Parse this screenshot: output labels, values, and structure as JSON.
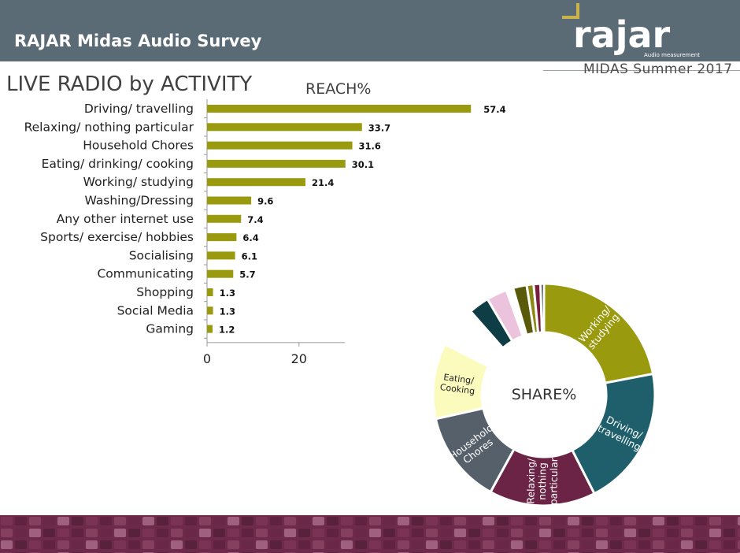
{
  "header": {
    "title": "RAJAR Midas Audio Survey",
    "logo_text": "rajar",
    "logo_subtext": "Audio measurement",
    "subtitle": "MIDAS Summer 2017"
  },
  "page_title": "LIVE RADIO by ACTIVITY",
  "colors": {
    "header_bg": "#5b6b76",
    "bar": "#9a9a0f",
    "footer": "#6e2a4b",
    "logo_accent": "#c9b34a"
  },
  "chart_data": [
    {
      "type": "bar",
      "orientation": "horizontal",
      "title": "REACH%",
      "categories": [
        "Driving/ travelling",
        "Relaxing/ nothing particular",
        "Household Chores",
        "Eating/ drinking/ cooking",
        "Working/ studying",
        "Washing/Dressing",
        "Any other internet use",
        "Sports/ exercise/ hobbies",
        "Socialising",
        "Communicating",
        "Shopping",
        "Social Media",
        "Gaming"
      ],
      "values": [
        57.4,
        33.7,
        31.6,
        30.1,
        21.4,
        9.6,
        7.4,
        6.4,
        6.1,
        5.7,
        1.3,
        1.3,
        1.2
      ],
      "value_labels": [
        "57.4",
        "33.7",
        "31.6",
        "30.1",
        "21.4",
        "9.6",
        "7.4",
        "6.4",
        "6.1",
        "5.7",
        "1.3",
        "1.3",
        "1.2"
      ],
      "xticks": [
        0,
        20
      ],
      "xlim": [
        0,
        30
      ],
      "grid": false
    },
    {
      "type": "pie",
      "variant": "donut",
      "title": "SHARE%",
      "slices": [
        {
          "label": "Working/ studying",
          "value": 22.0,
          "color": "#9a9a0f"
        },
        {
          "label": "Driving/ travelling",
          "value": 20.5,
          "color": "#1f5f6b"
        },
        {
          "label": "Relaxing/ nothing particular",
          "value": 15.5,
          "color": "#6b2446"
        },
        {
          "label": "Household Chores",
          "value": 13.5,
          "color": "#55606b"
        },
        {
          "label": "Eating/ Cooking",
          "value": 11.0,
          "color": "#fbfbbd"
        },
        {
          "label": "",
          "value": 6.0,
          "color": "#ffffff"
        },
        {
          "label": "",
          "value": 3.0,
          "color": "#0e3d45"
        },
        {
          "label": "",
          "value": 3.0,
          "color": "#ecc3dc"
        },
        {
          "label": "",
          "value": 1.0,
          "color": "#ffffff"
        },
        {
          "label": "",
          "value": 2.0,
          "color": "#5a5a0b"
        },
        {
          "label": "",
          "value": 1.0,
          "color": "#8a8a10"
        },
        {
          "label": "",
          "value": 1.0,
          "color": "#7a1e3e"
        },
        {
          "label": "",
          "value": 0.5,
          "color": "#1a1a1a"
        }
      ]
    }
  ]
}
